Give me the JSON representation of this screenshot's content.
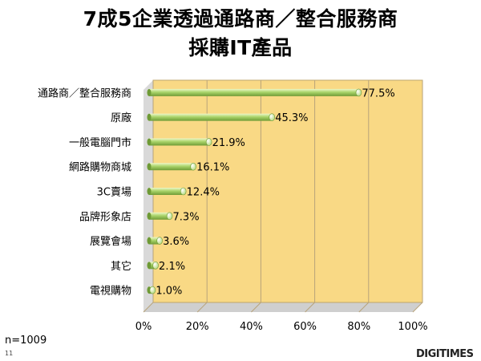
{
  "title_lines": [
    "7成5企業透過通路商／整合服務商",
    "採購IT產品"
  ],
  "sample_note": "n=1009",
  "page_number": "11",
  "brand": "DIGITIMES",
  "colors": {
    "plot_bg": "#f9d985",
    "plot_side": "#d9d9d9",
    "bar_light": "#eef8c8",
    "bar_mid": "#a9d46a",
    "bar_dark": "#6f9b36",
    "grid": "#b8a37a"
  },
  "chart_data": {
    "type": "bar",
    "orientation": "horizontal",
    "title": "7成5企業透過通路商／整合服務商採購IT產品",
    "categories": [
      "通路商／整合服務商",
      "原廠",
      "一般電腦門市",
      "網路購物商城",
      "3C賣場",
      "品牌形象店",
      "展覽會場",
      "其它",
      "電視購物"
    ],
    "values": [
      77.5,
      45.3,
      21.9,
      16.1,
      12.4,
      7.3,
      3.6,
      2.1,
      1.0
    ],
    "data_labels": [
      "77.5%",
      "45.3%",
      "21.9%",
      "16.1%",
      "12.4%",
      "7.3%",
      "3.6%",
      "2.1%",
      "1.0%"
    ],
    "x_ticks": [
      "0%",
      "20%",
      "40%",
      "60%",
      "80%",
      "100%"
    ],
    "xlim": [
      0,
      100
    ],
    "grid": true,
    "legend": "none"
  }
}
